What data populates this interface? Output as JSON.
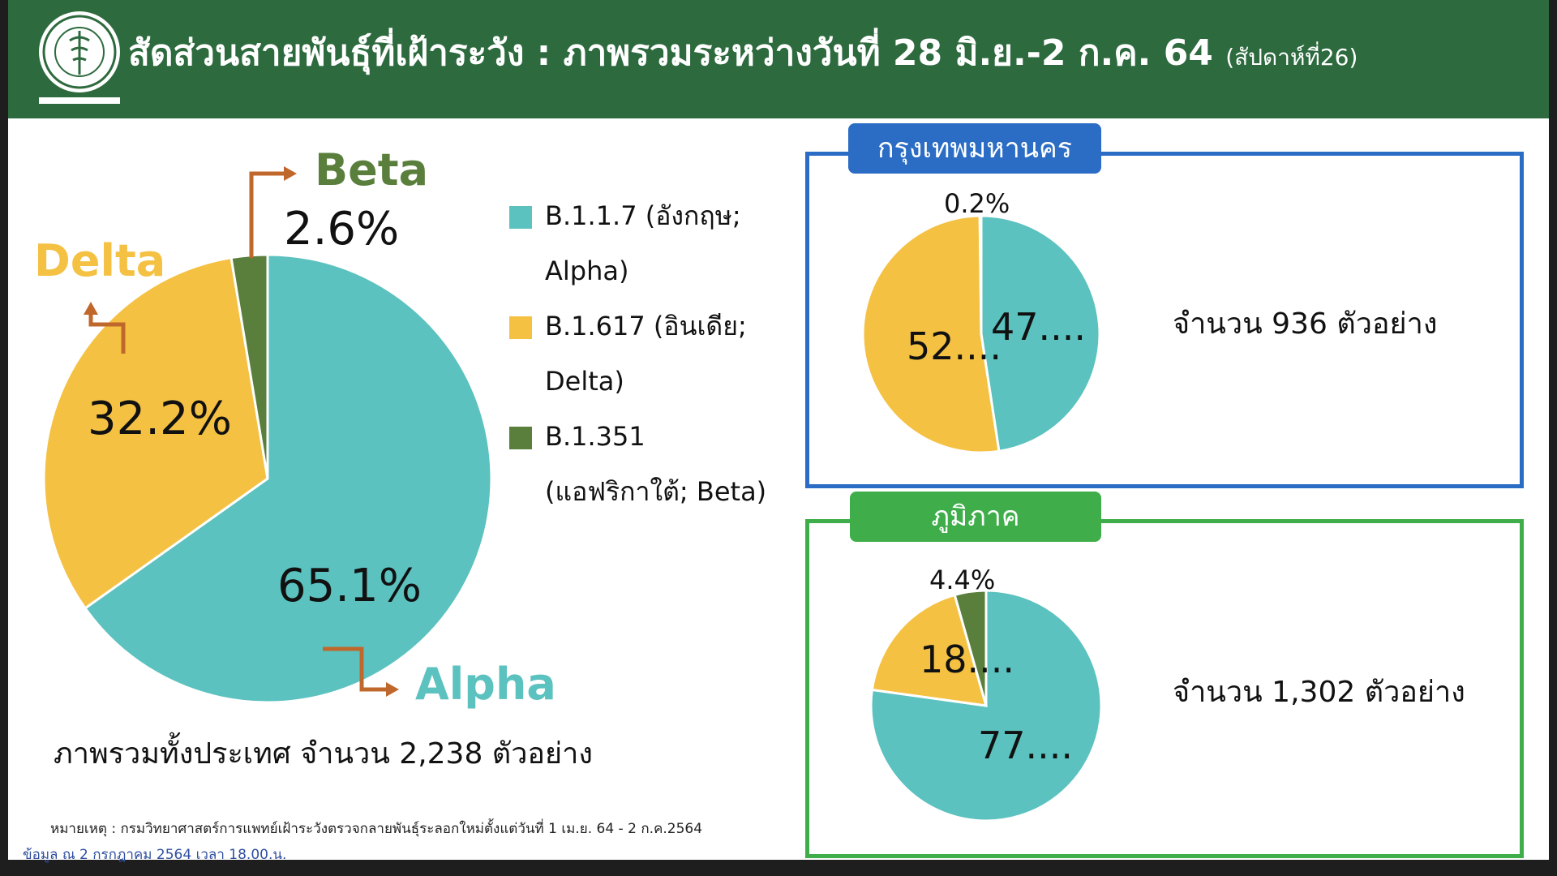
{
  "header": {
    "title": "สัดส่วนสายพันธุ์ที่เฝ้าระวัง : ภาพรวมระหว่างวันที่ 28 มิ.ย.-2 ก.ค. 64",
    "title_small": "(สัปดาห์ที่26)",
    "colors": {
      "bar": "#2d6a3e",
      "logo_green": "#2d6a3e"
    }
  },
  "legend": [
    {
      "label_line1": "B.1.1.7 (อังกฤษ;",
      "label_line2": "Alpha)",
      "color": "#5bc2bf"
    },
    {
      "label_line1": "B.1.617 (อินเดีย;",
      "label_line2": "Delta)",
      "color": "#f4c143"
    },
    {
      "label_line1": "B.1.351",
      "label_line2": "(แอฟริกาใต้; Beta)",
      "color": "#5a7f3c"
    }
  ],
  "callouts": {
    "alpha": "Alpha",
    "delta": "Delta",
    "beta": "Beta"
  },
  "main_labels": {
    "alpha": "65.1%",
    "delta": "32.2%",
    "beta": "2.6%"
  },
  "total_text": "ภาพรวมทั้งประเทศ จำนวน 2,238 ตัวอย่าง",
  "note": "หมายเหตุ :  กรมวิทยาศาสตร์การแพทย์เฝ้าระวังตรวจกลายพันธุ์ระลอกใหม่ตั้งแต่วันที่ 1 เม.ย. 64 -  2 ก.ค.2564",
  "data_date": "ข้อมูล ณ 2 กรกฎาคม 2564 เวลา 18.00.น.",
  "bangkok": {
    "tab": "กรุงเทพมหานคร",
    "count": "จำนวน 936 ตัวอย่าง",
    "labels": {
      "alpha": "47....",
      "delta": "52....",
      "beta": "0.2%"
    }
  },
  "region": {
    "tab": "ภูมิภาค",
    "count": "จำนวน 1,302 ตัวอย่าง",
    "labels": {
      "alpha": "77....",
      "delta": "18....",
      "beta": "4.4%"
    }
  },
  "chart_data": [
    {
      "type": "pie",
      "categories": [
        "B.1.1.7 (อังกฤษ; Alpha)",
        "B.1.617 (อินเดีย; Delta)",
        "B.1.351 (แอฟริกาใต้; Beta)"
      ],
      "values": [
        65.1,
        32.2,
        2.6
      ],
      "colors": [
        "#5bc2bf",
        "#f4c143",
        "#5a7f3c"
      ],
      "title": "ภาพรวมทั้งประเทศ จำนวน 2,238 ตัวอย่าง"
    },
    {
      "type": "pie",
      "categories": [
        "Alpha",
        "Delta",
        "Beta"
      ],
      "values": [
        47.6,
        52.2,
        0.2
      ],
      "colors": [
        "#5bc2bf",
        "#f4c143",
        "#5a7f3c"
      ],
      "title": "กรุงเทพมหานคร"
    },
    {
      "type": "pie",
      "categories": [
        "Alpha",
        "Delta",
        "Beta"
      ],
      "values": [
        77.2,
        18.4,
        4.4
      ],
      "colors": [
        "#5bc2bf",
        "#f4c143",
        "#5a7f3c"
      ],
      "title": "ภูมิภาค"
    }
  ]
}
